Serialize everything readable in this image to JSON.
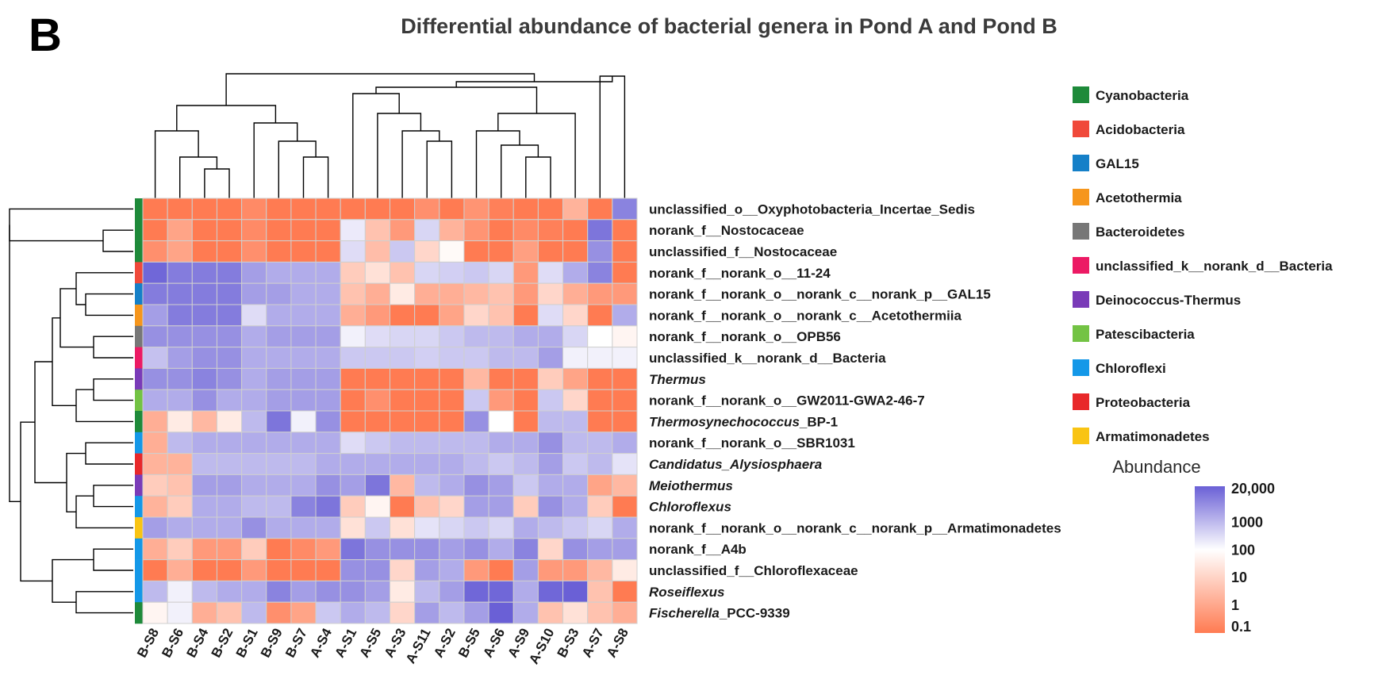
{
  "panel_letter": "B",
  "chart_data": {
    "type": "heatmap",
    "title": "Differential abundance of bacterial genera in Pond A and Pond B",
    "columns": [
      "B-S8",
      "B-S6",
      "B-S4",
      "B-S2",
      "B-S1",
      "B-S9",
      "B-S7",
      "A-S4",
      "A-S1",
      "A-S5",
      "A-S3",
      "A-S11",
      "A-S2",
      "B-S5",
      "A-S6",
      "A-S9",
      "A-S10",
      "B-S3",
      "A-S7",
      "A-S8"
    ],
    "rows": [
      {
        "label": "unclassified_o__Oxyphotobacteria_Incertae_Sedis",
        "italic": "",
        "suffix": "",
        "phylum": "Cyanobacteria"
      },
      {
        "label": "norank_f__Nostocaceae",
        "italic": "",
        "suffix": "",
        "phylum": "Cyanobacteria"
      },
      {
        "label": "unclassified_f__Nostocaceae",
        "italic": "",
        "suffix": "",
        "phylum": "Cyanobacteria"
      },
      {
        "label": "norank_f__norank_o__11-24",
        "italic": "",
        "suffix": "",
        "phylum": "Acidobacteria"
      },
      {
        "label": "norank_f__norank_o__norank_c__norank_p__GAL15",
        "italic": "",
        "suffix": "",
        "phylum": "GAL15"
      },
      {
        "label": "norank_f__norank_o__norank_c__Acetothermiia",
        "italic": "",
        "suffix": "",
        "phylum": "Acetothermia"
      },
      {
        "label": "norank_f__norank_o__OPB56",
        "italic": "",
        "suffix": "",
        "phylum": "Bacteroidetes"
      },
      {
        "label": "unclassified_k__norank_d__Bacteria",
        "italic": "",
        "suffix": "",
        "phylum": "unclassified_k__norank_d__Bacteria"
      },
      {
        "label": "",
        "italic": "Thermus",
        "suffix": "",
        "phylum": "Deinococcus-Thermus"
      },
      {
        "label": "norank_f__norank_o__GW2011-GWA2-46-7",
        "italic": "",
        "suffix": "",
        "phylum": "Patescibacteria"
      },
      {
        "label": "",
        "italic": "Thermosynechococcus",
        "suffix": "_BP-1",
        "phylum": "Cyanobacteria"
      },
      {
        "label": "norank_f__norank_o__SBR1031",
        "italic": "",
        "suffix": "",
        "phylum": "Chloroflexi"
      },
      {
        "label": "",
        "italic": "Candidatus_Alysiosphaera",
        "suffix": "",
        "phylum": "Proteobacteria"
      },
      {
        "label": "",
        "italic": "Meiothermus",
        "suffix": "",
        "phylum": "Deinococcus-Thermus"
      },
      {
        "label": "",
        "italic": "Chloroflexus",
        "suffix": "",
        "phylum": "Chloroflexi"
      },
      {
        "label": "norank_f__norank_o__norank_c__norank_p__Armatimonadetes",
        "italic": "",
        "suffix": "",
        "phylum": "Armatimonadetes"
      },
      {
        "label": "norank_f__A4b",
        "italic": "",
        "suffix": "",
        "phylum": "Chloroflexi"
      },
      {
        "label": "unclassified_f__Chloroflexaceae",
        "italic": "",
        "suffix": "",
        "phylum": "Chloroflexi"
      },
      {
        "label": "",
        "italic": "Roseiflexus",
        "suffix": "",
        "phylum": "Chloroflexi"
      },
      {
        "label": "",
        "italic": "Fischerella",
        "suffix": "_PCC-9339",
        "phylum": "Cyanobacteria"
      }
    ],
    "values_log10": [
      [
        -0.6,
        -0.6,
        -0.6,
        -0.6,
        -0.3,
        -0.6,
        -0.6,
        -0.6,
        -0.6,
        -0.6,
        -0.6,
        -0.2,
        -0.6,
        -0.1,
        -0.5,
        -0.6,
        -0.6,
        0.5,
        -0.6,
        3.8
      ],
      [
        -0.6,
        0.2,
        -0.6,
        -0.6,
        -0.3,
        -0.6,
        -0.6,
        -0.6,
        2.3,
        0.8,
        0.0,
        2.6,
        0.5,
        -0.1,
        -0.6,
        -0.3,
        -0.5,
        -0.6,
        4.0,
        -0.6
      ],
      [
        -0.2,
        0.2,
        -0.6,
        -0.6,
        -0.2,
        -0.6,
        -0.6,
        -0.6,
        2.5,
        0.7,
        2.8,
        1.2,
        1.9,
        -0.6,
        -0.6,
        0.1,
        -0.6,
        -0.6,
        3.6,
        -0.6
      ],
      [
        4.2,
        3.9,
        3.9,
        3.9,
        3.4,
        3.2,
        3.2,
        3.2,
        1.0,
        1.4,
        0.8,
        2.6,
        2.7,
        2.8,
        2.6,
        0.0,
        2.5,
        3.2,
        3.8,
        -0.6
      ],
      [
        3.9,
        3.9,
        3.9,
        3.9,
        3.4,
        3.4,
        3.2,
        3.2,
        0.8,
        0.4,
        1.6,
        0.4,
        0.4,
        0.6,
        0.8,
        0.0,
        1.2,
        0.4,
        0.0,
        0.0
      ],
      [
        3.4,
        3.9,
        3.9,
        3.9,
        2.5,
        3.2,
        3.2,
        3.2,
        0.4,
        0.0,
        -0.6,
        -0.6,
        0.2,
        1.2,
        0.8,
        -0.6,
        2.5,
        1.2,
        -0.6,
        3.2
      ],
      [
        3.6,
        3.6,
        3.6,
        3.6,
        3.2,
        3.4,
        3.4,
        3.4,
        2.2,
        2.5,
        2.6,
        2.6,
        2.8,
        3.0,
        3.0,
        3.2,
        3.2,
        2.6,
        2.0,
        1.8
      ],
      [
        2.9,
        3.4,
        3.6,
        3.6,
        3.2,
        3.2,
        3.2,
        3.2,
        2.8,
        2.8,
        2.8,
        2.7,
        2.8,
        2.8,
        3.0,
        3.0,
        3.4,
        2.2,
        2.2,
        2.2
      ],
      [
        3.6,
        3.6,
        3.8,
        3.6,
        3.2,
        3.4,
        3.4,
        3.4,
        -0.6,
        -0.6,
        -0.6,
        -0.6,
        -0.6,
        0.6,
        -0.6,
        -0.6,
        1.0,
        0.2,
        -0.6,
        -0.6
      ],
      [
        3.2,
        3.2,
        3.6,
        3.2,
        3.2,
        3.4,
        3.4,
        3.4,
        -0.6,
        -0.2,
        -0.6,
        -0.6,
        -0.6,
        2.8,
        0.0,
        -0.6,
        2.8,
        1.2,
        -0.6,
        -0.6
      ],
      [
        0.4,
        1.6,
        0.6,
        1.6,
        3.0,
        4.0,
        2.2,
        3.6,
        -0.6,
        -0.6,
        -0.6,
        -0.6,
        -0.6,
        3.6,
        2.0,
        -0.6,
        3.0,
        3.0,
        -0.6,
        -0.6
      ],
      [
        0.4,
        3.0,
        3.2,
        3.2,
        3.2,
        3.2,
        3.2,
        3.2,
        2.5,
        2.8,
        3.0,
        3.0,
        3.0,
        3.0,
        3.2,
        3.2,
        3.6,
        3.0,
        3.0,
        3.2
      ],
      [
        0.5,
        0.5,
        3.0,
        3.0,
        3.0,
        3.0,
        3.0,
        3.2,
        3.2,
        3.2,
        3.2,
        3.2,
        3.2,
        3.0,
        2.8,
        3.0,
        3.4,
        2.8,
        3.0,
        2.4
      ],
      [
        1.0,
        0.8,
        3.4,
        3.4,
        3.2,
        3.2,
        3.2,
        3.6,
        3.4,
        4.0,
        0.6,
        3.0,
        3.2,
        3.6,
        3.4,
        2.8,
        3.2,
        3.2,
        0.2,
        0.6
      ],
      [
        0.5,
        1.0,
        3.2,
        3.2,
        3.0,
        3.0,
        3.8,
        4.0,
        1.0,
        1.8,
        -0.6,
        0.8,
        1.2,
        3.4,
        3.4,
        1.0,
        3.6,
        3.2,
        1.0,
        -0.6
      ],
      [
        3.4,
        3.2,
        3.2,
        3.2,
        3.6,
        3.2,
        3.2,
        3.2,
        1.4,
        2.8,
        1.4,
        2.4,
        2.6,
        2.8,
        2.6,
        3.2,
        3.0,
        2.8,
        2.6,
        3.2
      ],
      [
        0.4,
        1.0,
        0.0,
        0.0,
        1.0,
        -0.6,
        -0.3,
        0.0,
        4.0,
        3.6,
        3.6,
        3.6,
        3.4,
        3.6,
        3.2,
        3.8,
        1.2,
        3.6,
        3.4,
        3.4
      ],
      [
        -0.6,
        0.4,
        -0.6,
        -0.6,
        0.0,
        -0.6,
        -0.6,
        -0.6,
        3.6,
        3.6,
        1.2,
        3.4,
        3.2,
        0.0,
        -0.6,
        3.4,
        0.0,
        0.0,
        0.6,
        1.6
      ],
      [
        3.0,
        2.2,
        3.0,
        3.2,
        3.2,
        3.8,
        3.4,
        3.6,
        3.6,
        3.4,
        1.6,
        3.0,
        3.4,
        4.2,
        4.2,
        3.2,
        4.2,
        4.3,
        0.8,
        -0.6
      ],
      [
        1.8,
        2.2,
        0.4,
        0.8,
        3.0,
        -0.2,
        0.2,
        2.8,
        3.2,
        3.0,
        1.2,
        3.4,
        3.0,
        3.4,
        4.3,
        3.2,
        0.8,
        1.4,
        0.8,
        0.4
      ]
    ],
    "legend": {
      "placement": "right",
      "items": [
        {
          "name": "Cyanobacteria",
          "color": "#1e8a3a"
        },
        {
          "name": "Acidobacteria",
          "color": "#f0493a"
        },
        {
          "name": "GAL15",
          "color": "#1580c8"
        },
        {
          "name": "Acetothermia",
          "color": "#f6961c"
        },
        {
          "name": "Bacteroidetes",
          "color": "#777777"
        },
        {
          "name": "unclassified_k__norank_d__Bacteria",
          "color": "#ec1a64"
        },
        {
          "name": "Deinococcus-Thermus",
          "color": "#7a3bb8"
        },
        {
          "name": "Patescibacteria",
          "color": "#73c344"
        },
        {
          "name": "Chloroflexi",
          "color": "#1498e8"
        },
        {
          "name": "Proteobacteria",
          "color": "#e8282a"
        },
        {
          "name": "Armatimonadetes",
          "color": "#f9c413"
        }
      ]
    },
    "color_scale": {
      "title": "Abundance",
      "ticks": [
        "20,000",
        "1000",
        "100",
        "10",
        "1",
        "0.1"
      ],
      "tick_log10": [
        4.3,
        3.0,
        2.0,
        1.0,
        0.0,
        -1.0
      ],
      "low_color": "#ff7b52",
      "mid_color": "#ffffff",
      "high_color": "#6a60d6",
      "mid_log10": 2.0
    },
    "grid": "on"
  }
}
